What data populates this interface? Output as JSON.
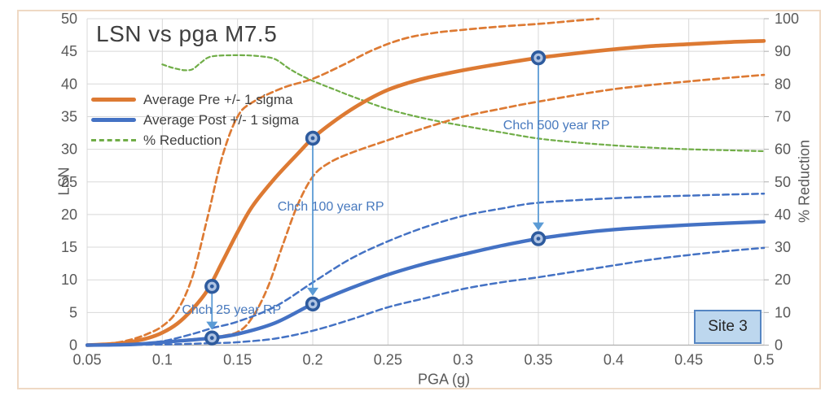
{
  "chart_data": {
    "type": "line",
    "title": "LSN vs pga M7.5",
    "xlabel": "PGA (g)",
    "ylabel_left": "LSN",
    "ylabel_right": "% Reduction",
    "xlim": [
      0.05,
      0.5
    ],
    "ylim_left": [
      0,
      50
    ],
    "ylim_right": [
      0,
      100
    ],
    "grid": true,
    "x_tick_labels": [
      "0.05",
      "0.1",
      "0.15",
      "0.2",
      "0.25",
      "0.3",
      "0.35",
      "0.4",
      "0.45",
      "0.5"
    ],
    "y_tick_labels_left": [
      "0",
      "5",
      "10",
      "15",
      "20",
      "25",
      "30",
      "35",
      "40",
      "45",
      "50"
    ],
    "y_tick_labels_right": [
      "0",
      "10",
      "20",
      "30",
      "40",
      "50",
      "60",
      "70",
      "80",
      "90",
      "100"
    ],
    "legend_position": "upper-left-inside",
    "legend": [
      {
        "label": "Average Pre +/- 1 sigma",
        "color": "#DD7A33",
        "style": "solid"
      },
      {
        "label": "Average Post +/- 1 sigma",
        "color": "#4472C4",
        "style": "solid"
      },
      {
        "label": "% Reduction",
        "color": "#70AD47",
        "style": "dashed"
      }
    ],
    "series": [
      {
        "id": "pct-reduction",
        "name": "% Reduction",
        "axis": "right",
        "color": "#70AD47",
        "width": 2.2,
        "dash": "5 3.5",
        "points": [
          [
            0.1,
            86
          ],
          [
            0.105,
            85.2
          ],
          [
            0.11,
            84.6
          ],
          [
            0.115,
            84.2
          ],
          [
            0.12,
            84.5
          ],
          [
            0.125,
            86.3
          ],
          [
            0.13,
            88
          ],
          [
            0.135,
            88.6
          ],
          [
            0.145,
            88.8
          ],
          [
            0.155,
            88.8
          ],
          [
            0.165,
            88.5
          ],
          [
            0.175,
            87.6
          ],
          [
            0.185,
            84.5
          ],
          [
            0.195,
            82
          ],
          [
            0.205,
            80
          ],
          [
            0.215,
            78.2
          ],
          [
            0.225,
            76.4
          ],
          [
            0.25,
            72.3
          ],
          [
            0.275,
            69.4
          ],
          [
            0.3,
            67.2
          ],
          [
            0.325,
            65.2
          ],
          [
            0.35,
            63.3
          ],
          [
            0.375,
            62.1
          ],
          [
            0.4,
            61.2
          ],
          [
            0.425,
            60.5
          ],
          [
            0.45,
            60
          ],
          [
            0.475,
            59.7
          ],
          [
            0.5,
            59.4
          ]
        ]
      },
      {
        "id": "pre-plus-sigma",
        "name": "Pre +1 sigma",
        "axis": "left",
        "color": "#DD7A33",
        "width": 2.7,
        "dash": "7.5 4.5",
        "points": [
          [
            0.05,
            0
          ],
          [
            0.06,
            0.15
          ],
          [
            0.07,
            0.4
          ],
          [
            0.08,
            0.9
          ],
          [
            0.09,
            1.7
          ],
          [
            0.1,
            2.9
          ],
          [
            0.11,
            5.3
          ],
          [
            0.12,
            10.5
          ],
          [
            0.13,
            19.5
          ],
          [
            0.14,
            29
          ],
          [
            0.15,
            35
          ],
          [
            0.16,
            37.2
          ],
          [
            0.18,
            39.4
          ],
          [
            0.2,
            40.8
          ],
          [
            0.22,
            42.9
          ],
          [
            0.24,
            45.2
          ],
          [
            0.26,
            46.9
          ],
          [
            0.28,
            47.8
          ],
          [
            0.3,
            48.3
          ],
          [
            0.325,
            48.8
          ],
          [
            0.35,
            49.2
          ],
          [
            0.37,
            49.6
          ],
          [
            0.39,
            50
          ]
        ]
      },
      {
        "id": "pre-minus-sigma",
        "name": "Pre -1 sigma",
        "axis": "left",
        "color": "#DD7A33",
        "width": 2.7,
        "dash": "7.5 4.5",
        "points": [
          [
            0.05,
            0
          ],
          [
            0.07,
            0.1
          ],
          [
            0.09,
            0.3
          ],
          [
            0.1,
            0.5
          ],
          [
            0.12,
            0.9
          ],
          [
            0.133,
            1.2
          ],
          [
            0.15,
            2
          ],
          [
            0.16,
            4.3
          ],
          [
            0.17,
            8.8
          ],
          [
            0.18,
            15.3
          ],
          [
            0.19,
            21.5
          ],
          [
            0.2,
            25.8
          ],
          [
            0.21,
            27.8
          ],
          [
            0.225,
            29.4
          ],
          [
            0.25,
            31.4
          ],
          [
            0.275,
            33.3
          ],
          [
            0.3,
            35
          ],
          [
            0.325,
            36.2
          ],
          [
            0.35,
            37.3
          ],
          [
            0.4,
            39.2
          ],
          [
            0.45,
            40.4
          ],
          [
            0.5,
            41.4
          ]
        ]
      },
      {
        "id": "pre-average",
        "name": "Average Pre",
        "axis": "left",
        "color": "#DD7A33",
        "width": 4.6,
        "dash": "",
        "points": [
          [
            0.05,
            0
          ],
          [
            0.06,
            0.1
          ],
          [
            0.07,
            0.25
          ],
          [
            0.08,
            0.55
          ],
          [
            0.09,
            1.05
          ],
          [
            0.1,
            1.9
          ],
          [
            0.11,
            3.3
          ],
          [
            0.12,
            5.5
          ],
          [
            0.13,
            8.4
          ],
          [
            0.14,
            12.8
          ],
          [
            0.15,
            17.3
          ],
          [
            0.16,
            21.3
          ],
          [
            0.175,
            25.6
          ],
          [
            0.19,
            29.3
          ],
          [
            0.2,
            31.7
          ],
          [
            0.2125,
            34
          ],
          [
            0.225,
            36
          ],
          [
            0.2375,
            37.7
          ],
          [
            0.25,
            39.1
          ],
          [
            0.2625,
            40.1
          ],
          [
            0.275,
            40.9
          ],
          [
            0.3,
            42.1
          ],
          [
            0.325,
            43.1
          ],
          [
            0.35,
            44
          ],
          [
            0.375,
            44.7
          ],
          [
            0.4,
            45.3
          ],
          [
            0.425,
            45.8
          ],
          [
            0.45,
            46.1
          ],
          [
            0.475,
            46.4
          ],
          [
            0.5,
            46.6
          ]
        ]
      },
      {
        "id": "post-plus-sigma",
        "name": "Post +1 sigma",
        "axis": "left",
        "color": "#4472C4",
        "width": 2.5,
        "dash": "7.5 4.5",
        "points": [
          [
            0.05,
            0
          ],
          [
            0.08,
            0.2
          ],
          [
            0.1,
            0.6
          ],
          [
            0.12,
            1.7
          ],
          [
            0.133,
            2.6
          ],
          [
            0.15,
            3.6
          ],
          [
            0.175,
            5.9
          ],
          [
            0.2,
            9.6
          ],
          [
            0.225,
            13.2
          ],
          [
            0.25,
            15.9
          ],
          [
            0.275,
            18.1
          ],
          [
            0.3,
            19.8
          ],
          [
            0.325,
            20.9
          ],
          [
            0.35,
            21.8
          ],
          [
            0.4,
            22.5
          ],
          [
            0.45,
            22.9
          ],
          [
            0.5,
            23.2
          ]
        ]
      },
      {
        "id": "post-minus-sigma",
        "name": "Post -1 sigma",
        "axis": "left",
        "color": "#4472C4",
        "width": 2.5,
        "dash": "7.5 4.5",
        "points": [
          [
            0.05,
            0
          ],
          [
            0.1,
            0.1
          ],
          [
            0.133,
            0.3
          ],
          [
            0.15,
            0.45
          ],
          [
            0.175,
            1
          ],
          [
            0.2,
            2.2
          ],
          [
            0.225,
            3.9
          ],
          [
            0.25,
            5.8
          ],
          [
            0.275,
            7.2
          ],
          [
            0.3,
            8.6
          ],
          [
            0.325,
            9.6
          ],
          [
            0.35,
            10.4
          ],
          [
            0.375,
            11.3
          ],
          [
            0.4,
            12.2
          ],
          [
            0.425,
            13.1
          ],
          [
            0.45,
            13.8
          ],
          [
            0.475,
            14.4
          ],
          [
            0.5,
            14.9
          ]
        ]
      },
      {
        "id": "post-average",
        "name": "Average Post",
        "axis": "left",
        "color": "#4472C4",
        "width": 4.4,
        "dash": "",
        "points": [
          [
            0.05,
            0
          ],
          [
            0.08,
            0.1
          ],
          [
            0.1,
            0.45
          ],
          [
            0.12,
            0.8
          ],
          [
            0.133,
            1.1
          ],
          [
            0.15,
            1.7
          ],
          [
            0.175,
            3.4
          ],
          [
            0.2,
            6.3
          ],
          [
            0.225,
            8.7
          ],
          [
            0.25,
            10.8
          ],
          [
            0.275,
            12.5
          ],
          [
            0.3,
            13.9
          ],
          [
            0.325,
            15.2
          ],
          [
            0.35,
            16.3
          ],
          [
            0.375,
            17.1
          ],
          [
            0.4,
            17.7
          ],
          [
            0.45,
            18.4
          ],
          [
            0.5,
            18.9
          ]
        ]
      }
    ],
    "highlight_points": [
      {
        "id": "pre-25yr",
        "x": 0.133,
        "y": 9
      },
      {
        "id": "pre-100yr",
        "x": 0.2,
        "y": 31.7
      },
      {
        "id": "pre-500yr",
        "x": 0.35,
        "y": 44
      },
      {
        "id": "post-25yr",
        "x": 0.133,
        "y": 1.1
      },
      {
        "id": "post-100yr",
        "x": 0.2,
        "y": 6.3
      },
      {
        "id": "post-500yr",
        "x": 0.35,
        "y": 16.3
      }
    ],
    "arrows": [
      {
        "id": "25yr",
        "x": 0.133,
        "from": 9,
        "to": 1.1
      },
      {
        "id": "100yr",
        "x": 0.2,
        "from": 31.7,
        "to": 6.3
      },
      {
        "id": "500yr",
        "x": 0.35,
        "from": 44,
        "to": 16.3
      }
    ],
    "annotations": [
      {
        "id": "chch-25-year-rp",
        "label": "Chch 25 year RP",
        "x": 0.146,
        "y": 5.3
      },
      {
        "id": "chch-100-year-rp",
        "label": "Chch 100 year RP",
        "x": 0.212,
        "y": 21.1
      },
      {
        "id": "chch-500-year-rp",
        "label": "Chch 500 year RP",
        "x": 0.362,
        "y": 33.6
      }
    ],
    "site_label": "Site 3",
    "colors": {
      "grid": "#D8D8D8",
      "axis_line": "#AEAEAE",
      "tick_label": "#595959",
      "title": "#3F3F3F",
      "legend_text": "#404040",
      "annotation": "#4779BE",
      "arrow": "#5B9BD5",
      "marker_ring": "#2E5B9E",
      "marker_fill": "#AFC3E2",
      "site_box_fill": "#BDD7EE",
      "site_box_border": "#5585C2",
      "site_box_text": "#262626",
      "frame_border": "#EFD9C4"
    }
  }
}
